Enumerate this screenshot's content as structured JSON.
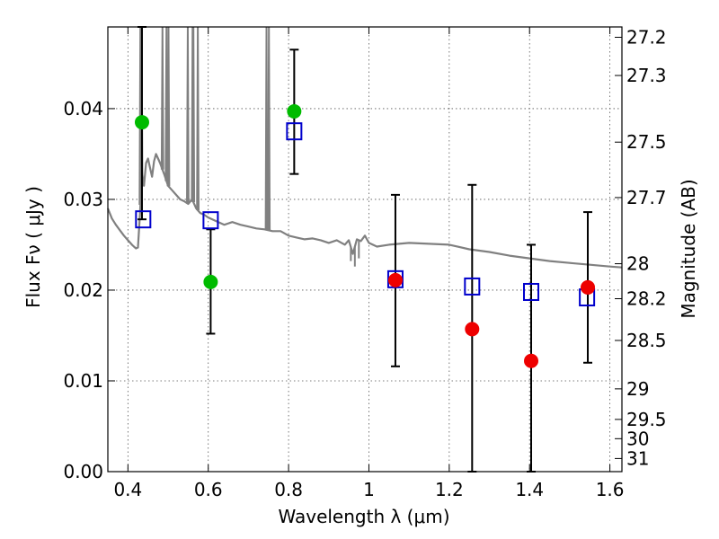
{
  "chart_data": {
    "type": "scatter",
    "title": "",
    "xlabel": "Wavelength  λ (μm)",
    "ylabel": "Flux  Fν  ( μJy )",
    "y2label": "Magnitude (AB)",
    "xlim": [
      0.35,
      1.63
    ],
    "ylim": [
      0.0,
      0.049
    ],
    "grid": true,
    "legend": "none",
    "x_ticks": [
      0.4,
      0.6,
      0.8,
      1.0,
      1.2,
      1.4,
      1.6
    ],
    "x_tick_labels": [
      "0.4",
      "0.6",
      "0.8",
      "1",
      "1.2",
      "1.4",
      "1.6"
    ],
    "y_ticks": [
      0.0,
      0.01,
      0.02,
      0.03,
      0.04
    ],
    "y_tick_labels": [
      "0.00",
      "0.01",
      "0.02",
      "0.03",
      "0.04"
    ],
    "y2_ticks": [
      {
        "label": "27.2",
        "mag": 27.2
      },
      {
        "label": "27.3",
        "mag": 27.3
      },
      {
        "label": "27.5",
        "mag": 27.5
      },
      {
        "label": "27.7",
        "mag": 27.7
      },
      {
        "label": "28",
        "mag": 28.0
      },
      {
        "label": "28.2",
        "mag": 28.2
      },
      {
        "label": "28.5",
        "mag": 28.5
      },
      {
        "label": "29",
        "mag": 29.0
      },
      {
        "label": "29.5",
        "mag": 29.5
      },
      {
        "label": "30",
        "mag": 30.0
      },
      {
        "label": "31",
        "mag": 31.0
      }
    ],
    "colors": {
      "model": "#808080",
      "green": "#00bb00",
      "red": "#ee0000",
      "squares": "#0000cc",
      "errorbars": "#000000",
      "grid": "#555555"
    },
    "model_spectrum": {
      "x": [
        0.35,
        0.36,
        0.37,
        0.38,
        0.39,
        0.4,
        0.41,
        0.415,
        0.42,
        0.425,
        0.43,
        0.435,
        0.44,
        0.445,
        0.45,
        0.455,
        0.46,
        0.465,
        0.47,
        0.475,
        0.48,
        0.49,
        0.5,
        0.51,
        0.52,
        0.53,
        0.54,
        0.55,
        0.56,
        0.57,
        0.58,
        0.59,
        0.6,
        0.62,
        0.64,
        0.66,
        0.68,
        0.7,
        0.72,
        0.74,
        0.76,
        0.78,
        0.8,
        0.82,
        0.84,
        0.86,
        0.88,
        0.9,
        0.92,
        0.94,
        0.95,
        0.96,
        0.97,
        0.98,
        0.99,
        1.0,
        1.02,
        1.05,
        1.1,
        1.15,
        1.2,
        1.25,
        1.3,
        1.35,
        1.4,
        1.45,
        1.5,
        1.55,
        1.6,
        1.63
      ],
      "y": [
        0.029,
        0.0279,
        0.0272,
        0.0266,
        0.026,
        0.0255,
        0.025,
        0.0248,
        0.0246,
        0.0247,
        0.0285,
        0.033,
        0.0315,
        0.034,
        0.0345,
        0.0335,
        0.0325,
        0.0342,
        0.035,
        0.0345,
        0.034,
        0.0328,
        0.0315,
        0.031,
        0.0305,
        0.03,
        0.0298,
        0.0295,
        0.03,
        0.029,
        0.0285,
        0.0283,
        0.028,
        0.0276,
        0.0272,
        0.0275,
        0.0272,
        0.027,
        0.0268,
        0.0267,
        0.0265,
        0.0265,
        0.026,
        0.0258,
        0.0256,
        0.0257,
        0.0255,
        0.0252,
        0.0255,
        0.025,
        0.0255,
        0.024,
        0.0256,
        0.0254,
        0.026,
        0.0252,
        0.0248,
        0.025,
        0.0252,
        0.0251,
        0.025,
        0.0245,
        0.0242,
        0.0238,
        0.0235,
        0.0232,
        0.023,
        0.0228,
        0.0226,
        0.0225
      ]
    },
    "emission_lines": [
      {
        "x": 0.431,
        "y": 0.049
      },
      {
        "x": 0.434,
        "y": 0.049
      },
      {
        "x": 0.486,
        "y": 0.049
      },
      {
        "x": 0.496,
        "y": 0.049
      },
      {
        "x": 0.501,
        "y": 0.049
      },
      {
        "x": 0.549,
        "y": 0.049
      },
      {
        "x": 0.561,
        "y": 0.049
      },
      {
        "x": 0.563,
        "y": 0.049
      },
      {
        "x": 0.574,
        "y": 0.049
      },
      {
        "x": 0.745,
        "y": 0.049
      },
      {
        "x": 0.751,
        "y": 0.049
      }
    ],
    "absorption_features": [
      {
        "x": 0.955,
        "y": 0.0232
      },
      {
        "x": 0.965,
        "y": 0.0226
      },
      {
        "x": 0.975,
        "y": 0.0235
      }
    ],
    "series": [
      {
        "marker": "square",
        "color": "#0000cc",
        "x": [
          0.438,
          0.606,
          0.814,
          1.066,
          1.257,
          1.404,
          1.543
        ],
        "y": [
          0.0278,
          0.0277,
          0.0375,
          0.0212,
          0.0204,
          0.0198,
          0.0192
        ]
      },
      {
        "marker": "circle",
        "color": "#00bb00",
        "x": [
          0.435,
          0.606,
          0.814
        ],
        "y": [
          0.0385,
          0.0209,
          0.0397
        ]
      },
      {
        "marker": "circle",
        "color": "#ee0000",
        "x": [
          1.066,
          1.257,
          1.404,
          1.545
        ],
        "y": [
          0.0211,
          0.0157,
          0.0122,
          0.0203
        ]
      }
    ],
    "error_bars": [
      {
        "x": 0.435,
        "low": 0.0278,
        "high": 0.049
      },
      {
        "x": 0.606,
        "low": 0.0152,
        "high": 0.0267
      },
      {
        "x": 0.814,
        "low": 0.0328,
        "high": 0.0465
      },
      {
        "x": 1.066,
        "low": 0.0116,
        "high": 0.0305
      },
      {
        "x": 1.257,
        "low": 0.0,
        "high": 0.0316
      },
      {
        "x": 1.404,
        "low": 0.0,
        "high": 0.025
      },
      {
        "x": 1.545,
        "low": 0.012,
        "high": 0.0286
      }
    ]
  }
}
